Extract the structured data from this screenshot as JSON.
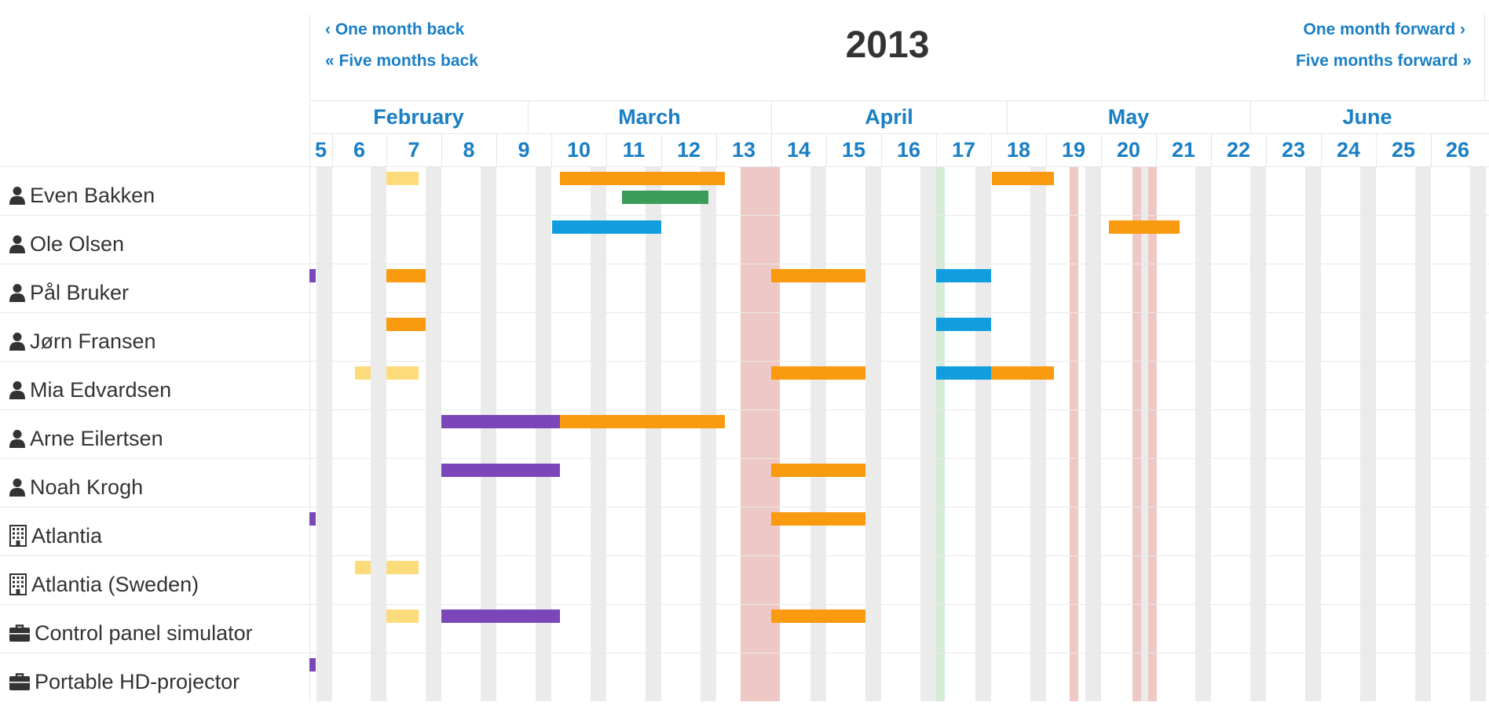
{
  "nav": {
    "one_month_back": "‹ One month back",
    "five_months_back": "« Five months back",
    "one_month_forward": "One month forward ›",
    "five_months_forward": "Five months forward »"
  },
  "calendar": {
    "year": "2013",
    "months": [
      "February",
      "March",
      "April",
      "May",
      "June"
    ],
    "weeks": [
      "5",
      "6",
      "7",
      "8",
      "9",
      "10",
      "11",
      "12",
      "13",
      "14",
      "15",
      "16",
      "17",
      "18",
      "19",
      "20",
      "21",
      "22",
      "23",
      "24",
      "25",
      "26"
    ]
  },
  "colors": {
    "orange": "#fa9a0f",
    "green": "#3b9b58",
    "blue": "#129ede",
    "purple": "#7b46b8",
    "yellow": "#fcdc7a",
    "holiday_red": "#eec8c4",
    "holiday_green": "#d4ecd6",
    "link": "#1a7fc4"
  },
  "resources": [
    {
      "name": "Even Bakken",
      "icon": "person-icon"
    },
    {
      "name": "Ole Olsen",
      "icon": "person-icon"
    },
    {
      "name": "Pål Bruker",
      "icon": "person-icon"
    },
    {
      "name": "Jørn Fransen",
      "icon": "person-icon"
    },
    {
      "name": "Mia Edvardsen",
      "icon": "person-icon"
    },
    {
      "name": "Arne Eilertsen",
      "icon": "person-icon"
    },
    {
      "name": "Noah Krogh",
      "icon": "person-icon"
    },
    {
      "name": "Atlantia",
      "icon": "building-icon"
    },
    {
      "name": "Atlantia (Sweden)",
      "icon": "building-icon"
    },
    {
      "name": "Control panel simulator",
      "icon": "briefcase-icon"
    },
    {
      "name": "Portable HD-projector",
      "icon": "briefcase-icon"
    }
  ]
}
